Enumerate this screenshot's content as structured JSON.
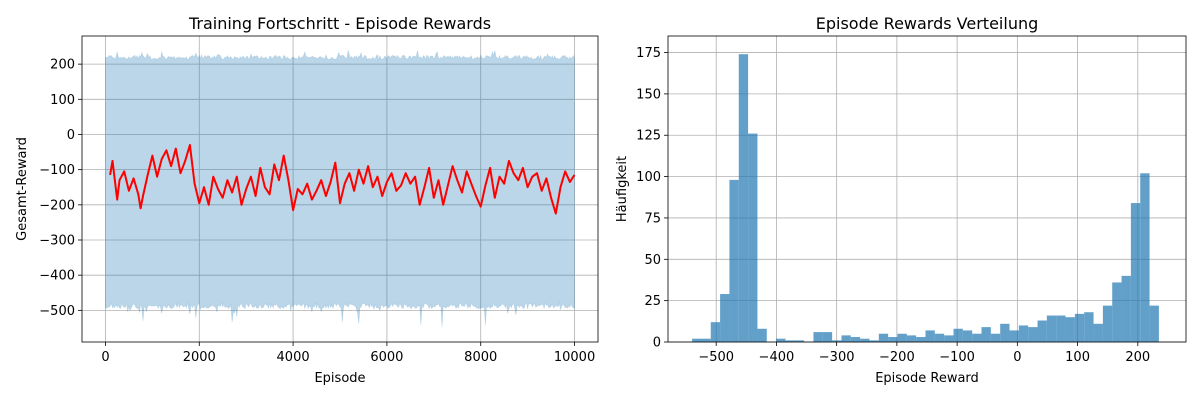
{
  "chart_data": [
    {
      "type": "line",
      "title": "Training Fortschritt - Episode Rewards",
      "xlabel": "Episode",
      "ylabel": "Gesamt-Reward",
      "xlim": [
        -500,
        10500
      ],
      "ylim": [
        -590,
        280
      ],
      "grid": true,
      "xticks": [
        0,
        2000,
        4000,
        6000,
        8000,
        10000
      ],
      "yticks": [
        -500,
        -400,
        -300,
        -200,
        -100,
        0,
        100,
        200
      ],
      "series": [
        {
          "kind": "raw-band",
          "color": "#1f77b4",
          "opacity": 0.3,
          "x_range": [
            0,
            10000
          ],
          "upper_typical": 225,
          "lower_typical": -495,
          "upper_peak": 240,
          "lower_min": -550
        },
        {
          "kind": "moving-average",
          "color": "#ff0000",
          "x": [
            100,
            150,
            250,
            300,
            400,
            500,
            600,
            700,
            750,
            800,
            900,
            1000,
            1100,
            1200,
            1300,
            1400,
            1500,
            1600,
            1700,
            1800,
            1900,
            2000,
            2100,
            2200,
            2300,
            2400,
            2500,
            2600,
            2700,
            2800,
            2900,
            3000,
            3100,
            3200,
            3300,
            3400,
            3500,
            3600,
            3700,
            3800,
            3900,
            4000,
            4100,
            4200,
            4300,
            4400,
            4500,
            4600,
            4700,
            4800,
            4900,
            5000,
            5100,
            5200,
            5300,
            5400,
            5500,
            5600,
            5700,
            5800,
            5900,
            6000,
            6100,
            6200,
            6300,
            6400,
            6500,
            6600,
            6700,
            6800,
            6900,
            7000,
            7100,
            7200,
            7300,
            7400,
            7500,
            7600,
            7700,
            7800,
            7900,
            8000,
            8100,
            8200,
            8300,
            8400,
            8500,
            8600,
            8700,
            8800,
            8900,
            9000,
            9100,
            9200,
            9300,
            9400,
            9500,
            9600,
            9700,
            9800,
            9900,
            10000
          ],
          "y": [
            -115,
            -75,
            -185,
            -130,
            -105,
            -160,
            -125,
            -170,
            -210,
            -175,
            -115,
            -60,
            -120,
            -70,
            -45,
            -90,
            -40,
            -110,
            -75,
            -30,
            -140,
            -195,
            -150,
            -200,
            -120,
            -155,
            -180,
            -130,
            -165,
            -120,
            -200,
            -155,
            -120,
            -175,
            -95,
            -150,
            -170,
            -85,
            -130,
            -60,
            -130,
            -215,
            -155,
            -170,
            -140,
            -185,
            -160,
            -130,
            -175,
            -135,
            -80,
            -195,
            -140,
            -110,
            -160,
            -100,
            -140,
            -90,
            -150,
            -120,
            -175,
            -135,
            -110,
            -160,
            -145,
            -110,
            -140,
            -120,
            -200,
            -150,
            -95,
            -180,
            -130,
            -200,
            -145,
            -90,
            -130,
            -165,
            -105,
            -140,
            -175,
            -205,
            -145,
            -95,
            -180,
            -120,
            -140,
            -75,
            -110,
            -130,
            -95,
            -150,
            -120,
            -110,
            -160,
            -125,
            -180,
            -225,
            -150,
            -105,
            -135,
            -115
          ]
        }
      ]
    },
    {
      "type": "bar",
      "title": "Episode Rewards Verteilung",
      "xlabel": "Episode Reward",
      "ylabel": "Häufigkeit",
      "xlim": [
        -580,
        280
      ],
      "ylim": [
        0,
        185
      ],
      "grid": true,
      "xticks": [
        -500,
        -400,
        -300,
        -200,
        -100,
        0,
        100,
        200
      ],
      "yticks": [
        0,
        25,
        50,
        75,
        100,
        125,
        150,
        175
      ],
      "color": "#1f77b4",
      "opacity": 0.7,
      "bin_start": -540,
      "bin_width": 15.5,
      "counts": [
        2,
        2,
        12,
        29,
        98,
        174,
        126,
        8,
        0,
        2,
        1,
        1,
        0,
        6,
        6,
        1,
        4,
        3,
        2,
        1,
        5,
        3,
        5,
        4,
        3,
        7,
        5,
        4,
        8,
        7,
        5,
        9,
        5,
        11,
        7,
        10,
        9,
        13,
        16,
        16,
        15,
        17,
        18,
        11,
        22,
        36,
        40,
        84,
        102,
        22
      ]
    }
  ]
}
